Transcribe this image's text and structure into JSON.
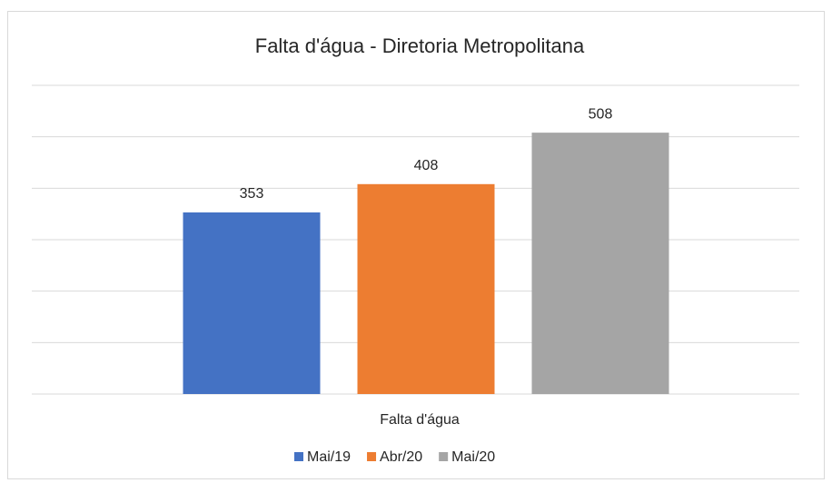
{
  "chart_data": {
    "type": "bar",
    "title": "Falta d'água - Diretoria Metropolitana",
    "categories": [
      "Falta d'água"
    ],
    "series": [
      {
        "name": "Mai/19",
        "color": "#4472c4",
        "values": [
          353
        ]
      },
      {
        "name": "Abr/20",
        "color": "#ed7d31",
        "values": [
          408
        ]
      },
      {
        "name": "Mai/20",
        "color": "#a5a5a5",
        "values": [
          508
        ]
      }
    ],
    "ylim": [
      0,
      600
    ],
    "yticks": [
      0,
      100,
      200,
      300,
      400,
      500,
      600
    ],
    "grid": true,
    "legend": "bottom"
  }
}
